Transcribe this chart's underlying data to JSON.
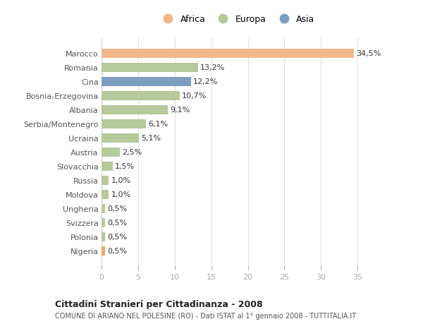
{
  "countries": [
    "Nigeria",
    "Polonia",
    "Svizzera",
    "Ungheria",
    "Moldova",
    "Russia",
    "Slovacchia",
    "Austria",
    "Ucraina",
    "Serbia/Montenegro",
    "Albania",
    "Bosnia-Erzegovina",
    "Cina",
    "Romania",
    "Marocco"
  ],
  "values": [
    0.5,
    0.5,
    0.5,
    0.5,
    1.0,
    1.0,
    1.5,
    2.5,
    5.1,
    6.1,
    9.1,
    10.7,
    12.2,
    13.2,
    34.5
  ],
  "labels": [
    "0,5%",
    "0,5%",
    "0,5%",
    "0,5%",
    "1,0%",
    "1,0%",
    "1,5%",
    "2,5%",
    "5,1%",
    "6,1%",
    "9,1%",
    "10,7%",
    "12,2%",
    "13,2%",
    "34,5%"
  ],
  "colors": [
    "#f0a868",
    "#b5c99a",
    "#b5c99a",
    "#b5c99a",
    "#b5c99a",
    "#b5c99a",
    "#b5c99a",
    "#b5c99a",
    "#b5c99a",
    "#b5c99a",
    "#b5c99a",
    "#b5c99a",
    "#7b9dc0",
    "#b5c99a",
    "#f0b88a"
  ],
  "legend_labels": [
    "Africa",
    "Europa",
    "Asia"
  ],
  "legend_colors": [
    "#f0b88a",
    "#b5c99a",
    "#7b9dc0"
  ],
  "title": "Cittadini Stranieri per Cittadinanza - 2008",
  "subtitle": "COMUNE DI ARIANO NEL POLESINE (RO) - Dati ISTAT al 1° gennaio 2008 - TUTTITALIA.IT",
  "xlim": [
    0,
    37
  ],
  "xticks": [
    0,
    5,
    10,
    15,
    20,
    25,
    30,
    35
  ],
  "background_color": "#ffffff",
  "plot_bg_color": "#ffffff",
  "grid_color": "#e0e0e0",
  "bar_height": 0.65,
  "label_fontsize": 8,
  "ytick_fontsize": 8,
  "xtick_fontsize": 8
}
